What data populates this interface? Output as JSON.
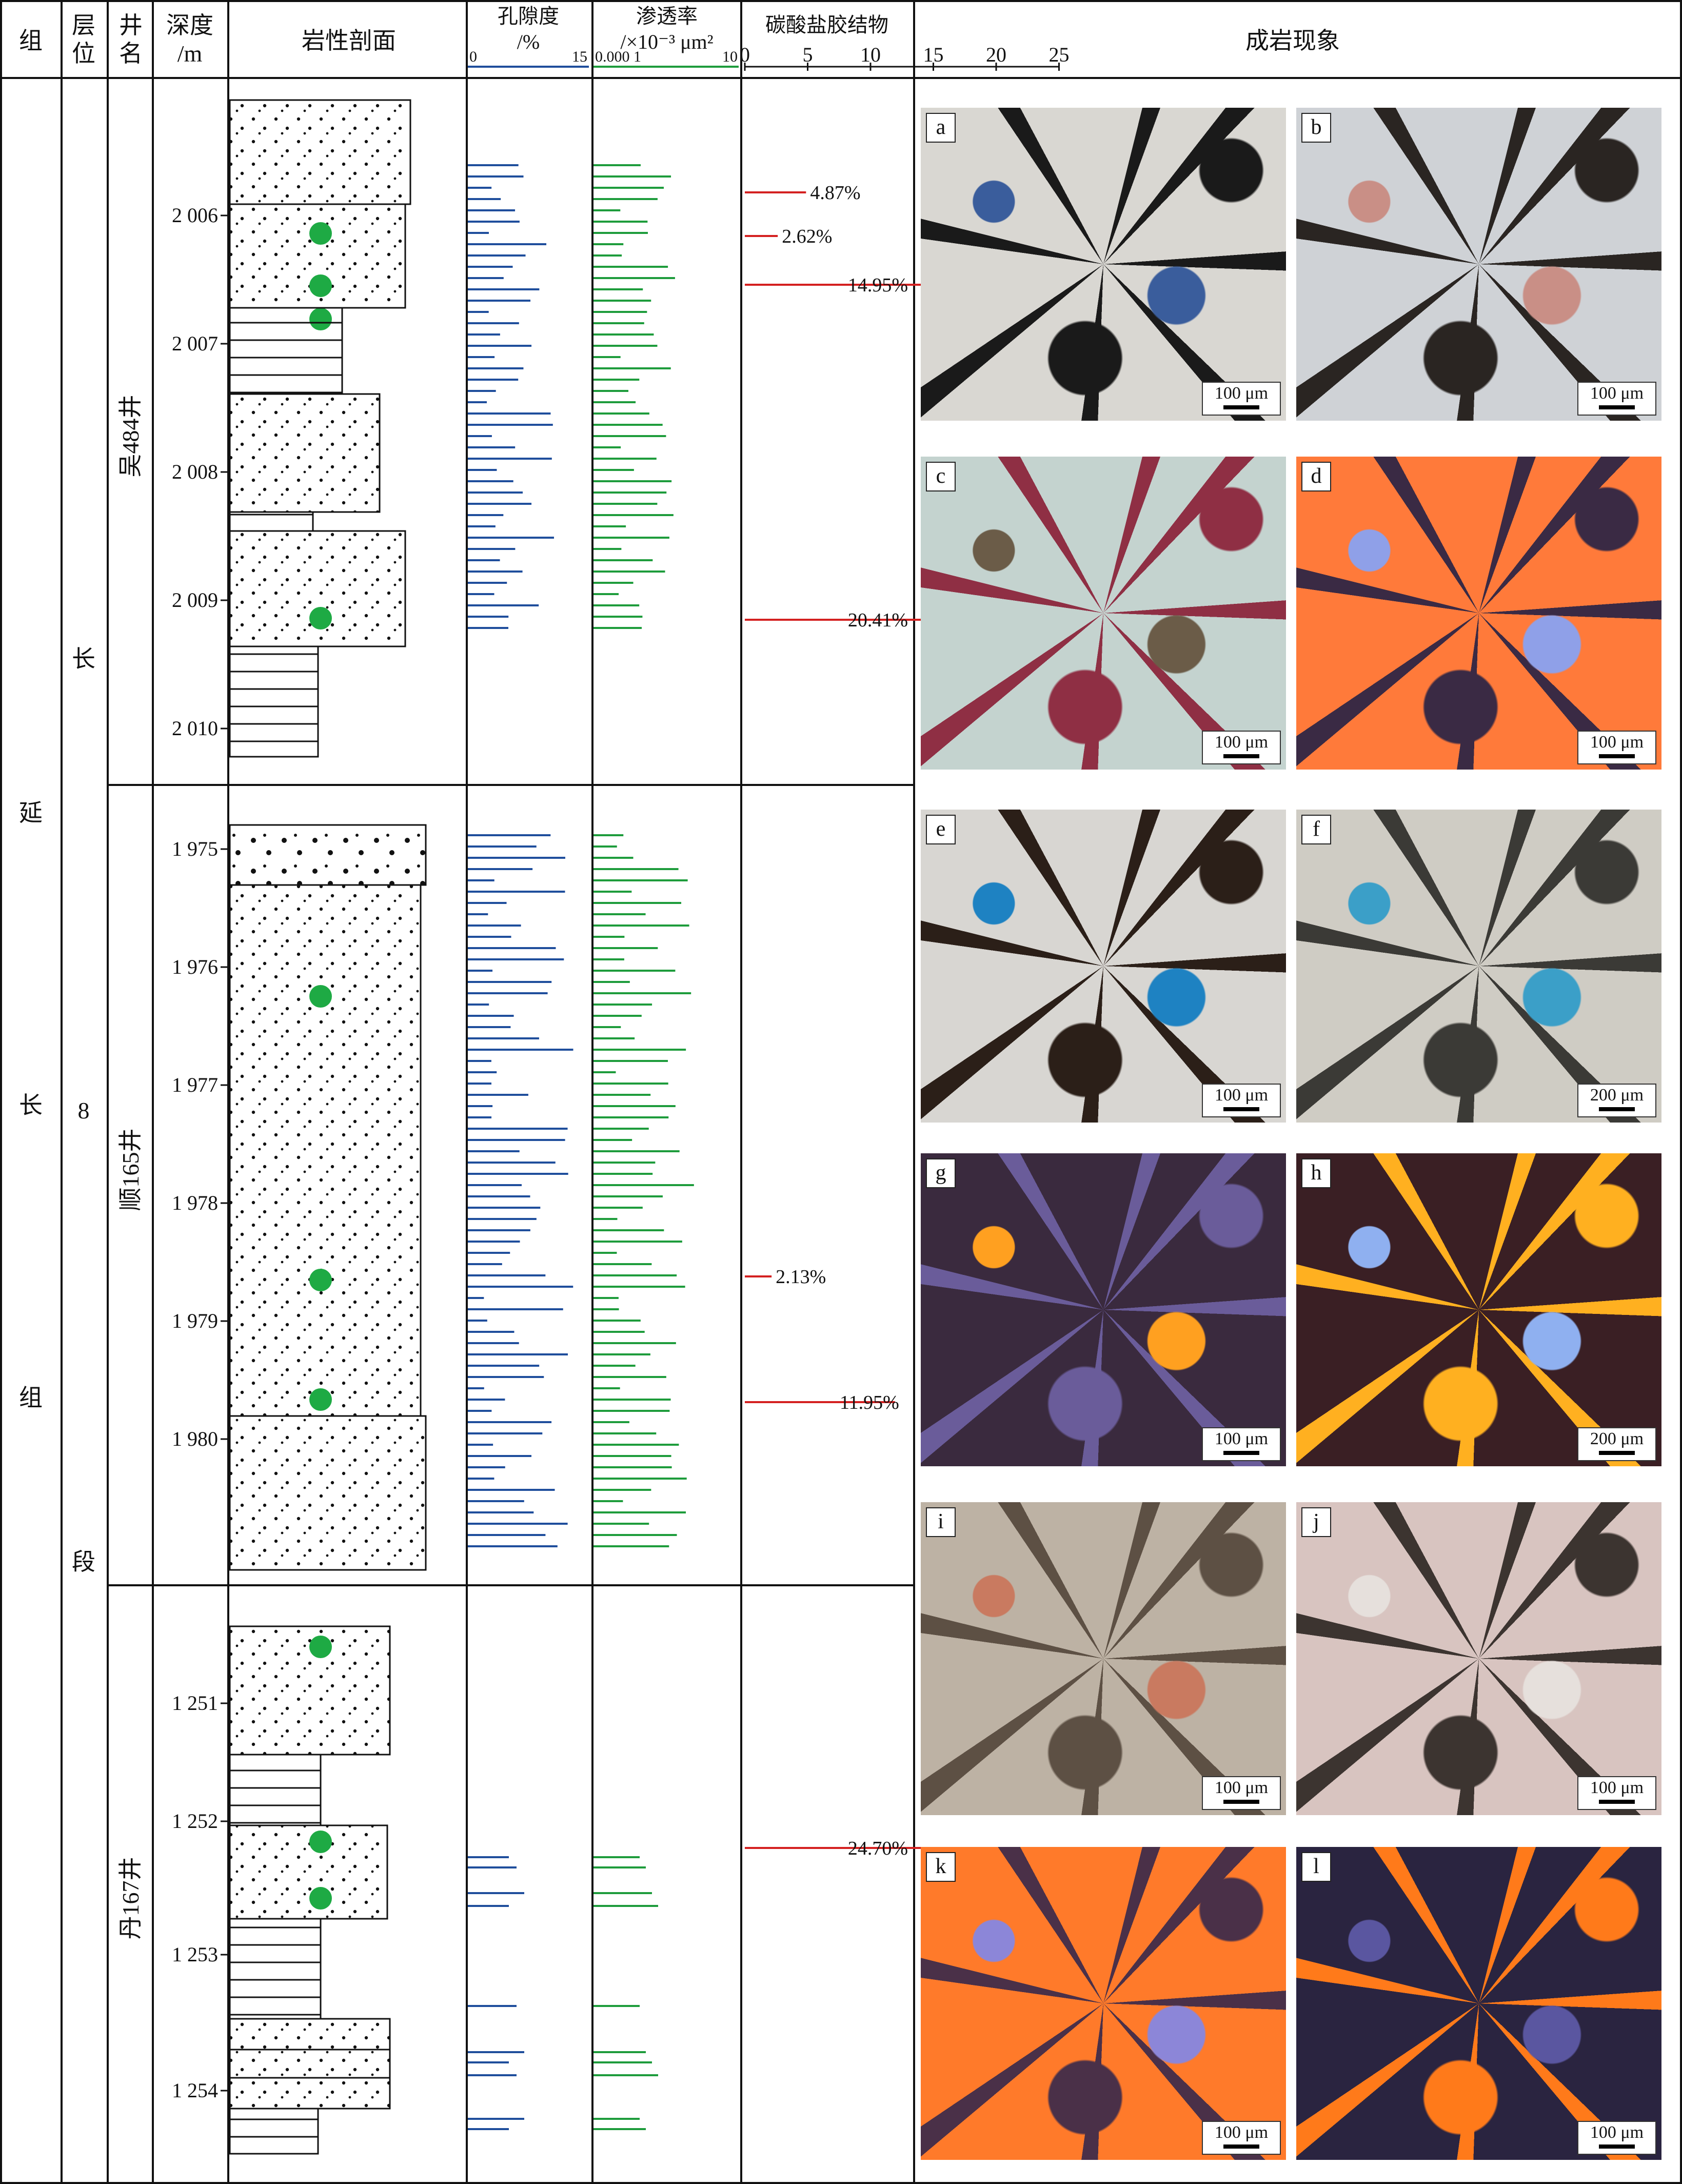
{
  "headers": {
    "formation": "组",
    "layer": "层位",
    "well": "井名",
    "depth": "深度/m",
    "lithology": "岩性剖面",
    "porosity": "孔隙度/%",
    "permeability": "渗透率/×10⁻³ μm²",
    "carbonate": "碳酸盐胶结物",
    "diagenesis": "成岩现象"
  },
  "scales": {
    "porosity_ticks": [
      "0",
      "15"
    ],
    "permeability_ticks": [
      "0.000 1",
      "10"
    ],
    "carbonate_ticks": [
      "0",
      "5",
      "10",
      "15",
      "20",
      "25"
    ]
  },
  "formation_label": [
    "延",
    "长",
    "组"
  ],
  "layer_label": [
    "长",
    "8",
    "段"
  ],
  "wells": [
    {
      "name": "吴484井",
      "depth_ticks": [
        "2 006",
        "2 007",
        "2 008",
        "2 009",
        "2 010"
      ],
      "carbonate": [
        {
          "depth": "2 006.15",
          "value": 4.87,
          "label": "4.87%"
        },
        {
          "depth": "2 006.5",
          "value": 2.62,
          "label": "2.62%"
        },
        {
          "depth": "2 006.85",
          "value": 14.95,
          "label": "14.95%"
        },
        {
          "depth": "2 009.6",
          "value": 20.41,
          "label": "20.41%"
        }
      ]
    },
    {
      "name": "顺165井",
      "depth_ticks": [
        "1 975",
        "1 976",
        "1 977",
        "1 978",
        "1 979",
        "1 980"
      ],
      "carbonate": [
        {
          "depth": "1 978.65",
          "value": 2.13,
          "label": "2.13%"
        },
        {
          "depth": "1 979.7",
          "value": 11.95,
          "label": "11.95%"
        }
      ]
    },
    {
      "name": "丹167井",
      "depth_ticks": [
        "1 251",
        "1 252",
        "1 253",
        "1 254"
      ],
      "carbonate": [
        {
          "depth": "1 252.2",
          "value": 24.7,
          "label": "24.70%"
        }
      ]
    }
  ],
  "photos": [
    {
      "letter": "a",
      "scale": "100 μm",
      "colors": [
        "#d9d7d2",
        "#1a1a1a",
        "#3a5d9c"
      ]
    },
    {
      "letter": "b",
      "scale": "100 μm",
      "colors": [
        "#cfd2d6",
        "#2a2522",
        "#c98f86"
      ]
    },
    {
      "letter": "c",
      "scale": "100 μm",
      "colors": [
        "#c4d3cf",
        "#8f2f44",
        "#6b5c48"
      ]
    },
    {
      "letter": "d",
      "scale": "100 μm",
      "colors": [
        "#ff7a3a",
        "#3a2a44",
        "#8fa0e8"
      ]
    },
    {
      "letter": "e",
      "scale": "100 μm",
      "colors": [
        "#d8d6d2",
        "#2b1f18",
        "#1e82c2"
      ]
    },
    {
      "letter": "f",
      "scale": "200 μm",
      "colors": [
        "#cfccc4",
        "#3b3a36",
        "#3b9fc8"
      ]
    },
    {
      "letter": "g",
      "scale": "100 μm",
      "colors": [
        "#3a2a3e",
        "#6a5c9a",
        "#ffa020"
      ]
    },
    {
      "letter": "h",
      "scale": "200 μm",
      "colors": [
        "#3a1f24",
        "#ffb020",
        "#8fb0f0"
      ]
    },
    {
      "letter": "i",
      "scale": "100 μm",
      "colors": [
        "#bdb2a4",
        "#5d5044",
        "#c97a60"
      ]
    },
    {
      "letter": "j",
      "scale": "100 μm",
      "colors": [
        "#d8c4c0",
        "#3c3430",
        "#e6e0dc"
      ]
    },
    {
      "letter": "k",
      "scale": "100 μm",
      "colors": [
        "#ff7a2a",
        "#4a3048",
        "#8c86d8"
      ]
    },
    {
      "letter": "l",
      "scale": "100 μm",
      "colors": [
        "#2a2440",
        "#ff7a1a",
        "#5a56a0"
      ]
    }
  ],
  "colors": {
    "porosity": "#1f4e9c",
    "permeability": "#1e9c3c",
    "carbonate": "#d42020",
    "oil_dot": "#1eaa44"
  }
}
